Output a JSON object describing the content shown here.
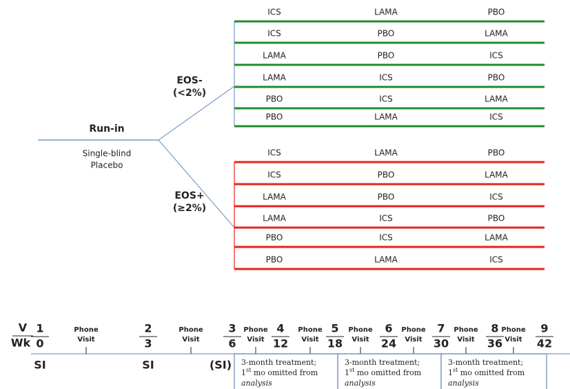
{
  "run_in": {
    "title": "Run-in",
    "lines": [
      "Single-blind",
      "Placebo"
    ]
  },
  "arms": [
    {
      "label": "EOS-",
      "criterion": "(<2%)",
      "sequences": [
        [
          "ICS",
          "LAMA",
          "PBO"
        ],
        [
          "ICS",
          "PBO",
          "LAMA"
        ],
        [
          "LAMA",
          "PBO",
          "ICS"
        ],
        [
          "LAMA",
          "ICS",
          "PBO"
        ],
        [
          "PBO",
          "ICS",
          "LAMA"
        ],
        [
          "PBO",
          "LAMA",
          "ICS"
        ]
      ]
    },
    {
      "label": "EOS+",
      "criterion": "(≥2%)",
      "sequences": [
        [
          "ICS",
          "LAMA",
          "PBO"
        ],
        [
          "ICS",
          "PBO",
          "LAMA"
        ],
        [
          "LAMA",
          "PBO",
          "ICS"
        ],
        [
          "LAMA",
          "ICS",
          "PBO"
        ],
        [
          "PBO",
          "ICS",
          "LAMA"
        ],
        [
          "PBO",
          "LAMA",
          "ICS"
        ]
      ]
    }
  ],
  "timeline": {
    "visit_label": "V",
    "week_label": "Wk",
    "visits": [
      {
        "visit": "1",
        "week": "0",
        "screening": "SI"
      },
      {
        "visit": "2",
        "week": "3",
        "screening": "SI"
      },
      {
        "visit": "3",
        "week": "6",
        "screening": "(SI)"
      },
      {
        "visit": "4",
        "week": "12"
      },
      {
        "visit": "5",
        "week": "18"
      },
      {
        "visit": "6",
        "week": "24"
      },
      {
        "visit": "7",
        "week": "30"
      },
      {
        "visit": "8",
        "week": "36"
      },
      {
        "visit": "9",
        "week": "42"
      }
    ],
    "phone_visits": [
      [
        "Phone",
        "Visit"
      ],
      [
        "Phone",
        "Visit"
      ],
      [
        "Phone",
        "Visit"
      ],
      [
        "Phone",
        "Visit"
      ],
      [
        "Phone",
        "Visit"
      ],
      [
        "Phone",
        "Visit"
      ],
      [
        "Phone",
        "Visit"
      ],
      [
        "Phone",
        "Visit"
      ]
    ],
    "treatment_periods": [
      {
        "line1": "3-month treatment;",
        "ordinal": "1",
        "ordinal_suffix": "st",
        "line2": " mo omitted from",
        "line3": "analysis"
      },
      {
        "line1": "3-month treatment;",
        "ordinal": "1",
        "ordinal_suffix": "st",
        "line2": " mo omitted from",
        "line3": "analysis"
      },
      {
        "line1": "3-month treatment;",
        "ordinal": "1",
        "ordinal_suffix": "st",
        "line2": " mo omitted from",
        "line3": "analysis"
      }
    ]
  }
}
